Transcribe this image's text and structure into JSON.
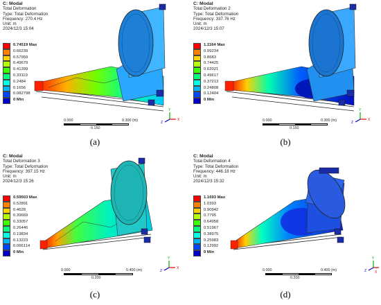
{
  "panels": [
    {
      "header": {
        "title": "C: Modal",
        "line1": "Total Deformation",
        "line2": "Type: Total Deformation",
        "line3": "Frequency: 270.4 Hz",
        "line4": "Unit: m",
        "line5": "2024/12/3 15:04"
      },
      "legend": [
        "0.74519 Max",
        "0.66239",
        "0.57959",
        "0.49679",
        "0.41399",
        "0.33119",
        "0.2484",
        "0.1656",
        "0.082798",
        "0 Min"
      ],
      "scale": {
        "left": "0.000",
        "right": "0.300 (m)",
        "mid": "0.150"
      },
      "caption": "(a)"
    },
    {
      "header": {
        "title": "C: Modal",
        "line1": "Total Deformation 2",
        "line2": "Type: Total Deformation",
        "line3": "Frequency: 337.76 Hz",
        "line4": "Unit: m",
        "line5": "2024/12/3 15:07"
      },
      "legend": [
        "1.1164 Max",
        "0.99234",
        "0.8683",
        "0.74425",
        "0.62021",
        "0.49617",
        "0.37213",
        "0.24808",
        "0.12404",
        "0 Min"
      ],
      "scale": {
        "left": "0.000",
        "right": "0.300 (m)",
        "mid": "0.150"
      },
      "caption": "(b)"
    },
    {
      "header": {
        "title": "C: Modal",
        "line1": "Total Deformation 3",
        "line2": "Type: Total Deformation",
        "line3": "Frequency: 397.15 Hz",
        "line4": "Unit: m",
        "line5": "2024/12/3 15:26"
      },
      "legend": [
        "0.59503 Max",
        "0.52891",
        "0.4628",
        "0.39669",
        "0.33057",
        "0.26446",
        "0.19834",
        "0.13223",
        "0.066114",
        "0 Min"
      ],
      "scale": {
        "left": "0.000",
        "right": "0.400 (m)",
        "mid": "0.200"
      },
      "caption": "(c)"
    },
    {
      "header": {
        "title": "C: Modal",
        "line1": "Total Deformation 4",
        "line2": "Type: Total Deformation",
        "line3": "Frequency: 446.18 Hz",
        "line4": "Unit: m",
        "line5": "2024/12/3 15:32"
      },
      "legend": [
        "1.1693 Max",
        "1.0393",
        "0.90942",
        "0.7795",
        "0.64958",
        "0.51967",
        "0.38975",
        "0.25983",
        "0.12992",
        "0 Min"
      ],
      "scale": {
        "left": "0.000",
        "right": "0.400 (m)",
        "mid": "0.200"
      },
      "caption": "(d)"
    }
  ],
  "legend_colors": [
    "#ff0000",
    "#ff7f00",
    "#ffd200",
    "#b4ff00",
    "#3cff00",
    "#00ff7a",
    "#00ffe6",
    "#00b4ff",
    "#0046ff",
    "#0000c8"
  ],
  "triad": {
    "x": "X",
    "y": "Y",
    "z": "Z"
  }
}
